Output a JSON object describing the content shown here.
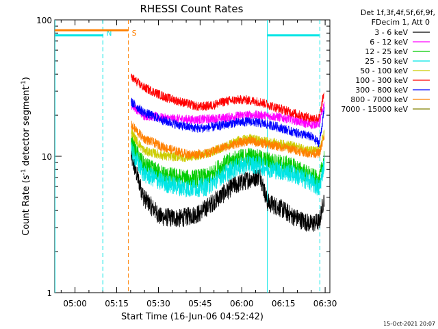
{
  "chart_data": {
    "type": "line",
    "title": "RHESSI Count Rates",
    "xlabel": "Start Time (16-Jun-06 04:52:42)",
    "ylabel_main": "Count Rate (s",
    "ylabel_sup1": "-1",
    "ylabel_mid": " detector segment",
    "ylabel_sup2": "-1",
    "ylabel_end": ")",
    "yscale": "log",
    "xlim_minutes": [
      0,
      99
    ],
    "ylim": [
      1,
      100
    ],
    "x_ticks": [
      {
        "label": "05:00",
        "t": 7.3
      },
      {
        "label": "05:15",
        "t": 22.3
      },
      {
        "label": "05:30",
        "t": 37.3
      },
      {
        "label": "05:45",
        "t": 52.3
      },
      {
        "label": "06:00",
        "t": 67.3
      },
      {
        "label": "06:15",
        "t": 82.3
      },
      {
        "label": "06:30",
        "t": 97.3
      }
    ],
    "y_ticks": [
      {
        "label": "1",
        "v": 1
      },
      {
        "label": "10",
        "v": 10
      },
      {
        "label": "100",
        "v": 100
      }
    ],
    "legend": {
      "placement": "right",
      "header1": "Det 1f,3f,4f,5f,6f,9f,",
      "header2": "FDecim 1, Att 0"
    },
    "series": [
      {
        "name": "3 - 6 keV",
        "color": "#000000",
        "points": [
          [
            27.5,
            10
          ],
          [
            32,
            5
          ],
          [
            38,
            3.6
          ],
          [
            45,
            3.5
          ],
          [
            52,
            3.8
          ],
          [
            58,
            4.8
          ],
          [
            64,
            6
          ],
          [
            70,
            6.8
          ],
          [
            74,
            7.2
          ],
          [
            76.5,
            4.6
          ],
          [
            81,
            4.2
          ],
          [
            86,
            3.6
          ],
          [
            92,
            3.2
          ],
          [
            95.2,
            3.3
          ],
          [
            97,
            5
          ]
        ]
      },
      {
        "name": "6 - 12 keV",
        "color": "#ff00ff",
        "points": [
          [
            27.5,
            24
          ],
          [
            32,
            20
          ],
          [
            40,
            19
          ],
          [
            50,
            18.5
          ],
          [
            60,
            19
          ],
          [
            68,
            20
          ],
          [
            74,
            20
          ],
          [
            80,
            19.5
          ],
          [
            86,
            18.5
          ],
          [
            92,
            17
          ],
          [
            95.2,
            17.5
          ],
          [
            97,
            24
          ]
        ]
      },
      {
        "name": "12 - 25 keV",
        "color": "#00cc00",
        "points": [
          [
            27.5,
            12.5
          ],
          [
            32,
            8.5
          ],
          [
            40,
            7.2
          ],
          [
            48,
            6.8
          ],
          [
            55,
            7
          ],
          [
            60,
            8.5
          ],
          [
            65,
            9.5
          ],
          [
            70,
            10
          ],
          [
            74,
            9.5
          ],
          [
            79,
            9
          ],
          [
            85,
            8.5
          ],
          [
            92,
            7.2
          ],
          [
            95.2,
            6.5
          ],
          [
            97,
            10
          ]
        ]
      },
      {
        "name": "25 - 50 keV",
        "color": "#00e5e5",
        "points": [
          [
            27.5,
            11
          ],
          [
            32,
            7.5
          ],
          [
            40,
            6.3
          ],
          [
            48,
            5.8
          ],
          [
            55,
            6
          ],
          [
            60,
            7.2
          ],
          [
            65,
            8.2
          ],
          [
            70,
            8.8
          ],
          [
            74,
            8.5
          ],
          [
            79,
            8
          ],
          [
            85,
            7.5
          ],
          [
            92,
            6.5
          ],
          [
            95.2,
            5.8
          ],
          [
            97,
            9
          ]
        ]
      },
      {
        "name": "50 - 100 keV",
        "color": "#cccc00",
        "points": [
          [
            27.5,
            15
          ],
          [
            32,
            11
          ],
          [
            40,
            10
          ],
          [
            48,
            9.8
          ],
          [
            55,
            10.5
          ],
          [
            60,
            11.5
          ],
          [
            66,
            13
          ],
          [
            70,
            13.5
          ],
          [
            74,
            13
          ],
          [
            79,
            12.5
          ],
          [
            85,
            12
          ],
          [
            92,
            11
          ],
          [
            95.2,
            11
          ],
          [
            97,
            15
          ]
        ]
      },
      {
        "name": "100 - 300 keV",
        "color": "#ff0000",
        "points": [
          [
            27.5,
            38
          ],
          [
            32,
            32
          ],
          [
            40,
            27
          ],
          [
            47,
            24.5
          ],
          [
            52,
            23
          ],
          [
            56,
            23.5
          ],
          [
            62,
            25.5
          ],
          [
            68,
            26
          ],
          [
            74,
            25
          ],
          [
            79,
            23
          ],
          [
            85,
            21
          ],
          [
            92,
            19
          ],
          [
            95.2,
            19
          ],
          [
            97,
            30
          ]
        ]
      },
      {
        "name": "300 - 800 keV",
        "color": "#0000ff",
        "points": [
          [
            27.5,
            25
          ],
          [
            32,
            21
          ],
          [
            40,
            18
          ],
          [
            47,
            16.5
          ],
          [
            52,
            16
          ],
          [
            58,
            16.5
          ],
          [
            64,
            17.5
          ],
          [
            70,
            18
          ],
          [
            74,
            17.5
          ],
          [
            80,
            16.5
          ],
          [
            86,
            15
          ],
          [
            92,
            14
          ],
          [
            95.2,
            12.5
          ],
          [
            97,
            22
          ]
        ]
      },
      {
        "name": "800 - 7000 keV",
        "color": "#ff8000",
        "points": [
          [
            27.5,
            17
          ],
          [
            32,
            13.5
          ],
          [
            40,
            11.5
          ],
          [
            48,
            10.3
          ],
          [
            55,
            10.5
          ],
          [
            60,
            11.5
          ],
          [
            66,
            12.5
          ],
          [
            70,
            13
          ],
          [
            74,
            12.5
          ],
          [
            79,
            12
          ],
          [
            85,
            11.3
          ],
          [
            92,
            10.5
          ],
          [
            95.2,
            10.5
          ],
          [
            97,
            14
          ]
        ]
      },
      {
        "name": "7000 - 15000 keV",
        "color": "#808000",
        "points": []
      }
    ],
    "attenuator_segments": [
      {
        "name": "",
        "color": "#ff8000",
        "t_start": 0,
        "t_end": 26.5,
        "v": 84
      },
      {
        "name": "",
        "color": "#00e5e5",
        "t_start": 0,
        "t_end": 17.5,
        "v": 77
      },
      {
        "name": "",
        "color": "#00e5e5",
        "t_start": 76.5,
        "t_end": 95.2,
        "v": 77
      }
    ],
    "markers": [
      {
        "label": "N",
        "t": 17.3,
        "color": "#00e5e5",
        "style": "dashed"
      },
      {
        "label": "S",
        "t": 26.5,
        "color": "#ff8000",
        "style": "dashed"
      },
      {
        "label": "",
        "t": 0.1,
        "color": "#00e5e5",
        "style": "solid"
      },
      {
        "label": "",
        "t": 76.5,
        "color": "#00e5e5",
        "style": "solid"
      },
      {
        "label": "",
        "t": 95.4,
        "color": "#00e5e5",
        "style": "dashed"
      }
    ]
  },
  "footer": {
    "timestamp": "15-Oct-2021 20:07"
  }
}
